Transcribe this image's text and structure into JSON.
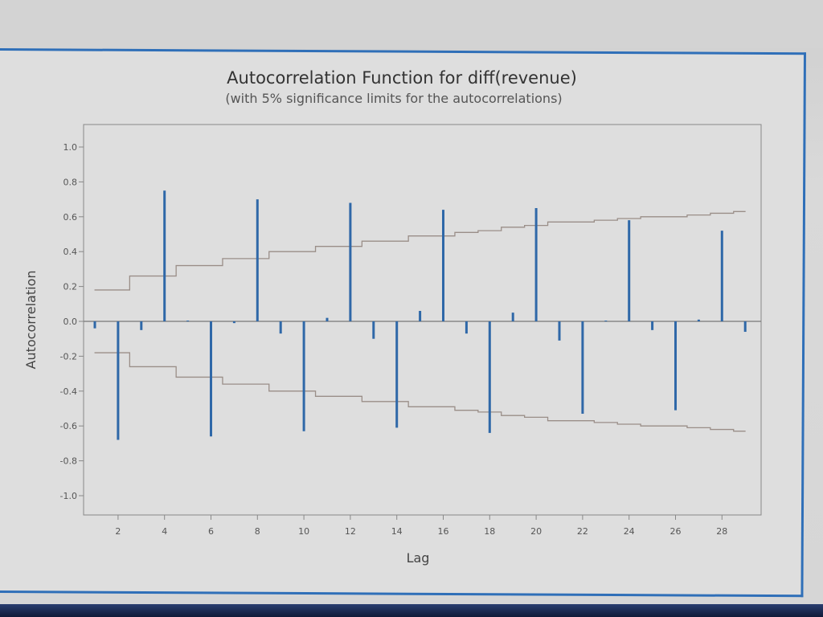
{
  "chart_data": {
    "type": "bar",
    "title": "Autocorrelation Function for diff(revenue)",
    "subtitle": "(with 5% significance limits for the autocorrelations)",
    "xlabel": "Lag",
    "ylabel": "Autocorrelation",
    "ylim": [
      -1.0,
      1.0
    ],
    "xlim": [
      1,
      29
    ],
    "grid": false,
    "legend": null,
    "y_ticks": [
      "1.0",
      "0.8",
      "0.6",
      "0.4",
      "0.2",
      "0.0",
      "-0.2",
      "-0.4",
      "-0.6",
      "-0.8",
      "-1.0"
    ],
    "x_ticks": [
      "2",
      "4",
      "6",
      "8",
      "10",
      "12",
      "14",
      "16",
      "18",
      "20",
      "22",
      "24",
      "26",
      "28"
    ],
    "lags": [
      1,
      2,
      3,
      4,
      5,
      6,
      7,
      8,
      9,
      10,
      11,
      12,
      13,
      14,
      15,
      16,
      17,
      18,
      19,
      20,
      21,
      22,
      23,
      24,
      25,
      26,
      27,
      28,
      29
    ],
    "acf": [
      -0.04,
      -0.68,
      -0.05,
      0.75,
      0.0,
      -0.66,
      -0.01,
      0.7,
      -0.07,
      -0.63,
      0.02,
      0.68,
      -0.1,
      -0.61,
      0.06,
      0.64,
      -0.07,
      -0.64,
      0.05,
      0.65,
      -0.11,
      -0.53,
      0.0,
      0.58,
      -0.05,
      -0.51,
      0.01,
      0.52,
      -0.06
    ],
    "significance_upper": [
      0.18,
      0.18,
      0.26,
      0.26,
      0.32,
      0.32,
      0.36,
      0.36,
      0.4,
      0.4,
      0.43,
      0.43,
      0.46,
      0.46,
      0.49,
      0.49,
      0.51,
      0.52,
      0.54,
      0.55,
      0.57,
      0.57,
      0.58,
      0.59,
      0.6,
      0.6,
      0.61,
      0.62,
      0.63
    ],
    "significance_lower": [
      -0.18,
      -0.18,
      -0.26,
      -0.26,
      -0.32,
      -0.32,
      -0.36,
      -0.36,
      -0.4,
      -0.4,
      -0.43,
      -0.43,
      -0.46,
      -0.46,
      -0.49,
      -0.49,
      -0.51,
      -0.52,
      -0.54,
      -0.55,
      -0.57,
      -0.57,
      -0.58,
      -0.59,
      -0.6,
      -0.6,
      -0.61,
      -0.62,
      -0.63
    ],
    "colors": {
      "bars": "#2f68a8",
      "limits": "#9a8e88",
      "axis": "#777777"
    }
  }
}
